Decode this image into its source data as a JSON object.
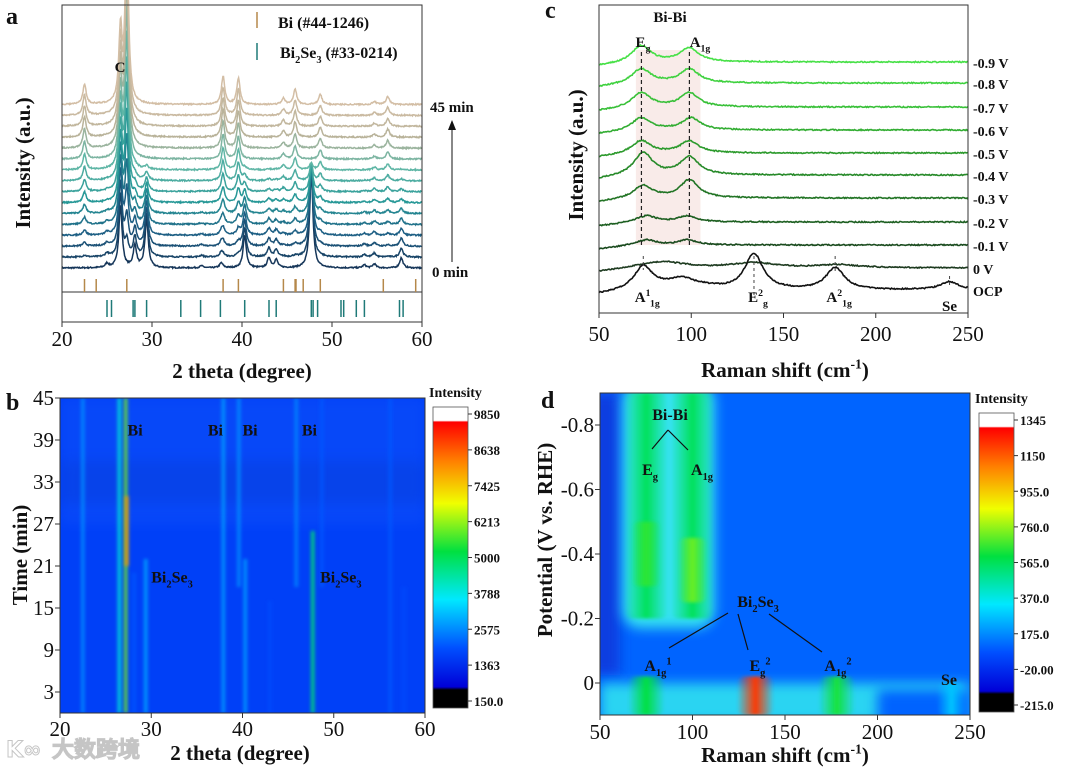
{
  "watermark": "大数跨境",
  "chart_data": [
    {
      "panel": "a",
      "type": "line",
      "title": "",
      "xlabel": "2 theta (degree)",
      "ylabel": "Intensity (a.u.)",
      "xlim": [
        20,
        60
      ],
      "xticks": [
        20,
        30,
        40,
        50,
        60
      ],
      "peak_label": "C",
      "time_labels": {
        "start": "0 min",
        "end": "45 min"
      },
      "series_count": 16,
      "time_range_min": [
        0,
        45
      ],
      "legend": [
        {
          "label": "Bi (#44-1246)",
          "color": "#b5884a"
        },
        {
          "label": "Bi_{2}Se_{3} (#33-0214)",
          "color": "#1f7a78"
        }
      ],
      "reference_lines": {
        "Bi": [
          22.5,
          23.8,
          27.2,
          37.9,
          39.6,
          44.6,
          45.9,
          46.0,
          46.8,
          48.7,
          55.7,
          59.3
        ],
        "Bi2Se3": [
          25.0,
          25.5,
          27.9,
          28.1,
          29.4,
          33.2,
          35.4,
          37.6,
          40.3,
          43.0,
          43.8,
          47.7,
          47.9,
          48.4,
          51.0,
          51.3,
          52.7,
          53.6,
          57.5,
          57.9
        ]
      },
      "peaks_0min": [
        [
          25.0,
          4
        ],
        [
          26.5,
          62
        ],
        [
          28.1,
          22
        ],
        [
          29.4,
          48
        ],
        [
          35.5,
          2
        ],
        [
          37.7,
          5
        ],
        [
          40.3,
          32
        ],
        [
          43.0,
          10
        ],
        [
          43.8,
          8
        ],
        [
          47.7,
          95
        ],
        [
          53.6,
          3
        ],
        [
          54.7,
          4
        ],
        [
          57.7,
          10
        ]
      ],
      "peaks_45min": [
        [
          22.5,
          20
        ],
        [
          26.5,
          72
        ],
        [
          27.2,
          170
        ],
        [
          37.9,
          28
        ],
        [
          39.6,
          26
        ],
        [
          44.6,
          6
        ],
        [
          45.9,
          15
        ],
        [
          48.7,
          10
        ],
        [
          54.7,
          3
        ],
        [
          56.2,
          8
        ]
      ],
      "colors": [
        "#163659",
        "#1d5f84",
        "#279897",
        "#5fb6a6",
        "#b9b39a",
        "#d3bea5"
      ]
    },
    {
      "panel": "b",
      "type": "heatmap",
      "xlabel": "2 theta (degree)",
      "ylabel": "Time (min)",
      "xlim": [
        20,
        60
      ],
      "ylim": [
        0,
        45
      ],
      "xticks": [
        20,
        30,
        40,
        50,
        60
      ],
      "yticks": [
        45,
        39,
        33,
        27,
        21,
        15,
        9,
        3
      ],
      "colorbar": {
        "title": "Intensity",
        "ticks": [
          "9850",
          "8638",
          "7425",
          "6213",
          "5000",
          "3788",
          "2575",
          "1363",
          "150.0"
        ],
        "range": [
          150,
          9850
        ]
      },
      "background_intensity": 900,
      "annotations": [
        {
          "text": "Bi",
          "two_theta": 27.4,
          "time": 40.5
        },
        {
          "text": "Bi",
          "two_theta": 36.2,
          "time": 40.5
        },
        {
          "text": "Bi",
          "two_theta": 40.0,
          "time": 40.5
        },
        {
          "text": "Bi",
          "two_theta": 46.5,
          "time": 40.5
        },
        {
          "text": "Bi_{2}Se_{3}",
          "two_theta": 30.0,
          "time": 19.5
        },
        {
          "text": "Bi_{2}Se_{3}",
          "two_theta": 48.5,
          "time": 19.5
        }
      ],
      "lines": [
        {
          "two_theta": 22.5,
          "t": [
            0,
            45
          ],
          "intensity": 2400
        },
        {
          "two_theta": 26.5,
          "t": [
            0,
            45
          ],
          "intensity": 3900
        },
        {
          "two_theta": 27.2,
          "t": [
            0,
            45
          ],
          "intensity": 6000
        },
        {
          "two_theta": 27.3,
          "t": [
            21,
            31
          ],
          "intensity": 8300
        },
        {
          "two_theta": 28.1,
          "t": [
            0,
            20
          ],
          "intensity": 1700
        },
        {
          "two_theta": 29.4,
          "t": [
            0,
            22
          ],
          "intensity": 2700
        },
        {
          "two_theta": 37.9,
          "t": [
            0,
            45
          ],
          "intensity": 2600
        },
        {
          "two_theta": 39.6,
          "t": [
            18,
            45
          ],
          "intensity": 2400
        },
        {
          "two_theta": 40.3,
          "t": [
            0,
            22
          ],
          "intensity": 2600
        },
        {
          "two_theta": 43.0,
          "t": [
            0,
            16
          ],
          "intensity": 1500
        },
        {
          "two_theta": 45.9,
          "t": [
            18,
            45
          ],
          "intensity": 2300
        },
        {
          "two_theta": 47.7,
          "t": [
            0,
            26
          ],
          "intensity": 4800
        },
        {
          "two_theta": 48.7,
          "t": [
            18,
            45
          ],
          "intensity": 1700
        },
        {
          "two_theta": 56.2,
          "t": [
            0,
            45
          ],
          "intensity": 1700
        },
        {
          "two_theta": 57.7,
          "t": [
            0,
            18
          ],
          "intensity": 1500
        }
      ]
    },
    {
      "panel": "c",
      "type": "line",
      "xlabel": "Raman shift (cm^{-1})",
      "ylabel": "Intensity (a.u.)",
      "xlim": [
        50,
        250
      ],
      "xticks": [
        50,
        100,
        150,
        200,
        250
      ],
      "group_label": "Bi-Bi",
      "mode_labels_red": [
        "E_{g}",
        "A_{1g}"
      ],
      "mode_labels_black": [
        {
          "text": "A^{1}_{1g}",
          "shift": 74
        },
        {
          "text": "E^{2}_{g}",
          "shift": 134
        },
        {
          "text": "A^{2}_{1g}",
          "shift": 178
        },
        {
          "text": "Se",
          "shift": 240
        }
      ],
      "highlight_range": [
        70,
        105
      ],
      "marker_lines": [
        73,
        99
      ],
      "series": [
        {
          "name": "-0.9 V",
          "color": "#46e046",
          "peaks": [
            [
              73,
              16
            ],
            [
              99,
              14
            ]
          ]
        },
        {
          "name": "-0.8 V",
          "color": "#3fd13f",
          "peaks": [
            [
              73,
              14
            ],
            [
              99,
              14
            ]
          ]
        },
        {
          "name": "-0.7 V",
          "color": "#38c038",
          "peaks": [
            [
              73,
              14
            ],
            [
              99,
              14
            ]
          ]
        },
        {
          "name": "-0.6 V",
          "color": "#32ad32",
          "peaks": [
            [
              73,
              12
            ],
            [
              100,
              12
            ]
          ]
        },
        {
          "name": "-0.5 V",
          "color": "#2c9a2c",
          "peaks": [
            [
              73,
              12
            ],
            [
              99,
              12
            ]
          ]
        },
        {
          "name": "-0.4 V",
          "color": "#278a29",
          "peaks": [
            [
              74,
              22
            ],
            [
              99,
              18
            ]
          ]
        },
        {
          "name": "-0.3 V",
          "color": "#227425",
          "peaks": [
            [
              74,
              12
            ],
            [
              99,
              18
            ]
          ]
        },
        {
          "name": "-0.2 V",
          "color": "#1d5f21",
          "peaks": [
            [
              76,
              6
            ],
            [
              98,
              6
            ]
          ]
        },
        {
          "name": "-0.1 V",
          "color": "#1a4b1e",
          "peaks": [
            [
              76,
              5
            ],
            [
              98,
              5
            ]
          ]
        },
        {
          "name": "0 V",
          "color": "#1d3a1f",
          "peaks": [
            [
              85,
              6
            ],
            [
              134,
              5
            ],
            [
              180,
              3
            ]
          ]
        },
        {
          "name": "OCP",
          "color": "#111111",
          "peaks": [
            [
              74,
              22
            ],
            [
              134,
              36
            ],
            [
              178,
              22
            ],
            [
              240,
              8
            ],
            [
              95,
              5
            ]
          ]
        }
      ]
    },
    {
      "panel": "d",
      "type": "heatmap",
      "xlabel": "Raman shift (cm^{-1})",
      "ylabel": "Potential (V vs. RHE)",
      "xlim": [
        50,
        250
      ],
      "ylim": [
        0.1,
        -0.9
      ],
      "xticks": [
        50,
        100,
        150,
        200,
        250
      ],
      "yticks": [
        "-0.8",
        "-0.6",
        "-0.4",
        "-0.2",
        "0"
      ],
      "colorbar": {
        "title": "Intensity",
        "ticks": [
          "1345",
          "1150",
          "955.0",
          "760.0",
          "565.0",
          "370.0",
          "175.0",
          "-20.00",
          "-215.0"
        ],
        "range": [
          -215,
          1345
        ]
      },
      "background_intensity": 60,
      "annotations": {
        "bi_bi": "Bi-Bi",
        "bi_bi_modes": [
          "E_{g}",
          "A_{1g}"
        ],
        "bi2se3": "Bi_{2}Se_{3}",
        "bi2se3_modes": [
          "A_{1g}^{1}",
          "E_{g}^{2}",
          "A_{1g}^{2}"
        ],
        "se": "Se"
      },
      "features": [
        {
          "shift": 75,
          "potential": [
            -0.9,
            -0.2
          ],
          "intensity": 560,
          "width": 12
        },
        {
          "shift": 100,
          "potential": [
            -0.9,
            -0.2
          ],
          "intensity": 560,
          "width": 12
        },
        {
          "shift": 75,
          "potential": [
            -0.5,
            -0.3
          ],
          "intensity": 650,
          "width": 8
        },
        {
          "shift": 100,
          "potential": [
            -0.45,
            -0.25
          ],
          "intensity": 720,
          "width": 8
        },
        {
          "shift": 75,
          "potential": [
            -0.02,
            0.1
          ],
          "intensity": 600,
          "width": 10
        },
        {
          "shift": 134,
          "potential": [
            -0.02,
            0.1
          ],
          "intensity": 1250,
          "width": 10
        },
        {
          "shift": 178,
          "potential": [
            -0.02,
            0.1
          ],
          "intensity": 620,
          "width": 10
        },
        {
          "shift": 240,
          "potential": [
            0.0,
            0.1
          ],
          "intensity": 260,
          "width": 8
        }
      ]
    }
  ]
}
